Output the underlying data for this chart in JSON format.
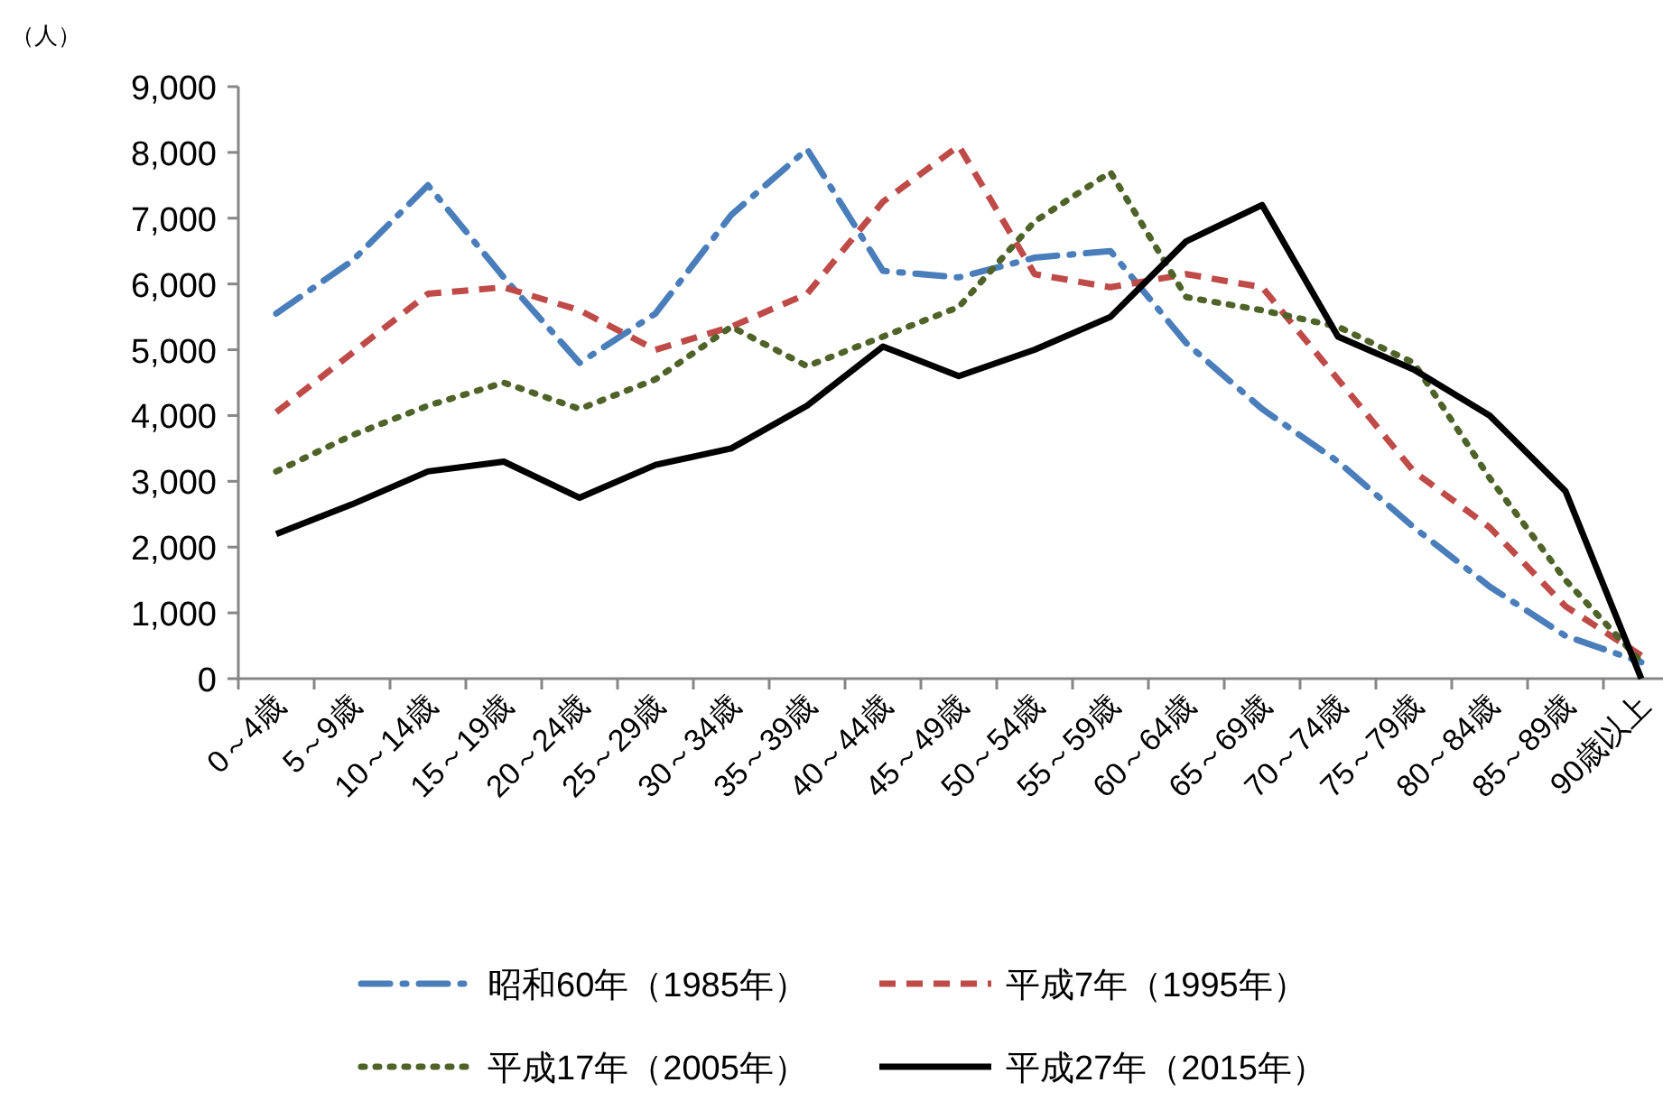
{
  "chart_data": {
    "type": "line",
    "ylabel": "（人）",
    "categories": [
      "0～4歳",
      "5～9歳",
      "10～14歳",
      "15～19歳",
      "20～24歳",
      "25～29歳",
      "30～34歳",
      "35～39歳",
      "40～44歳",
      "45～49歳",
      "50～54歳",
      "55～59歳",
      "60～64歳",
      "65～69歳",
      "70～74歳",
      "75～79歳",
      "80～84歳",
      "85～89歳",
      "90歳以上"
    ],
    "ylim": [
      0,
      9000
    ],
    "yticks": [
      {
        "value": 0,
        "label": "0"
      },
      {
        "value": 1000,
        "label": "1,000"
      },
      {
        "value": 2000,
        "label": "2,000"
      },
      {
        "value": 3000,
        "label": "3,000"
      },
      {
        "value": 4000,
        "label": "4,000"
      },
      {
        "value": 5000,
        "label": "5,000"
      },
      {
        "value": 6000,
        "label": "6,000"
      },
      {
        "value": 7000,
        "label": "7,000"
      },
      {
        "value": 8000,
        "label": "8,000"
      },
      {
        "value": 9000,
        "label": "9,000"
      }
    ],
    "grid": false,
    "legend": "bottom",
    "marker": "none",
    "series": [
      {
        "name": "昭和60年（1985年）",
        "color": "#4a7ebb",
        "line_style": "dashdot",
        "values": [
          5550,
          6350,
          7500,
          6100,
          4800,
          5550,
          7050,
          8050,
          6200,
          6100,
          6400,
          6500,
          5100,
          4100,
          3300,
          2300,
          1400,
          650,
          250
        ]
      },
      {
        "name": "平成7年（1995年）",
        "color": "#be4b48",
        "line_style": "dashed",
        "values": [
          4050,
          4950,
          5850,
          5950,
          5600,
          5000,
          5350,
          5850,
          7250,
          8100,
          6150,
          5950,
          6150,
          5950,
          4550,
          3150,
          2300,
          1100,
          350
        ]
      },
      {
        "name": "平成17年（2005年）",
        "color": "#4f6228",
        "line_style": "dotted",
        "values": [
          3150,
          3700,
          4150,
          4500,
          4100,
          4550,
          5350,
          4750,
          5200,
          5650,
          6950,
          7700,
          5800,
          5600,
          5350,
          4800,
          3050,
          1500,
          250
        ]
      },
      {
        "name": "平成27年（2015年）",
        "color": "#000000",
        "line_style": "solid",
        "values": [
          2200,
          2650,
          3150,
          3300,
          2750,
          3250,
          3500,
          4150,
          5050,
          4600,
          5000,
          5500,
          6650,
          7200,
          5200,
          4700,
          4000,
          2850,
          0
        ]
      }
    ]
  }
}
